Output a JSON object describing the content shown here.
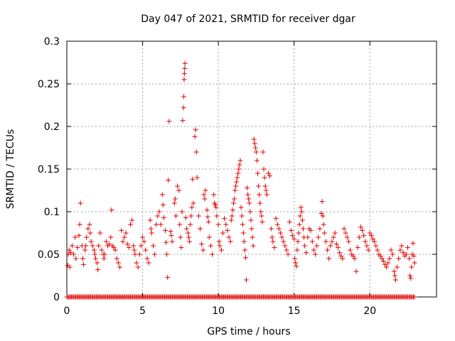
{
  "chart_data": {
    "type": "scatter",
    "title": "Day 047 of 2021, SRMTID for receiver dgar",
    "xlabel": "GPS time / hours",
    "ylabel": "SRMTID / TECUs",
    "xlim": [
      0,
      24.4
    ],
    "ylim": [
      0,
      0.3
    ],
    "xticks": [
      0,
      5,
      10,
      15,
      20
    ],
    "xtick_labels": [
      "0",
      "5",
      "10",
      "15",
      "20"
    ],
    "yticks": [
      0,
      0.05,
      0.1,
      0.15,
      0.2,
      0.25,
      0.3
    ],
    "ytick_labels": [
      "0",
      "0.05",
      "0.1",
      "0.15",
      "0.2",
      "0.25",
      "0.3"
    ],
    "grid": true,
    "marker": "+",
    "color": "#e00000",
    "series": [
      {
        "name": "SRMTID",
        "points": [
          [
            0.05,
            0.037
          ],
          [
            0.1,
            0.05
          ],
          [
            0.15,
            0.055
          ],
          [
            0.2,
            0.035
          ],
          [
            0.25,
            0.052
          ],
          [
            0.35,
            0.06
          ],
          [
            0.45,
            0.05
          ],
          [
            0.55,
            0.07
          ],
          [
            0.6,
            0.045
          ],
          [
            0.7,
            0.058
          ],
          [
            0.8,
            0.072
          ],
          [
            0.85,
            0.085
          ],
          [
            0.9,
            0.11
          ],
          [
            1.0,
            0.06
          ],
          [
            1.05,
            0.045
          ],
          [
            1.1,
            0.038
          ],
          [
            1.2,
            0.055
          ],
          [
            1.25,
            0.06
          ],
          [
            1.3,
            0.07
          ],
          [
            1.4,
            0.08
          ],
          [
            1.5,
            0.085
          ],
          [
            1.55,
            0.075
          ],
          [
            1.6,
            0.065
          ],
          [
            1.7,
            0.06
          ],
          [
            1.8,
            0.055
          ],
          [
            1.85,
            0.05
          ],
          [
            1.9,
            0.045
          ],
          [
            2.0,
            0.04
          ],
          [
            2.05,
            0.032
          ],
          [
            2.1,
            0.06
          ],
          [
            2.2,
            0.075
          ],
          [
            2.3,
            0.055
          ],
          [
            2.4,
            0.05
          ],
          [
            2.45,
            0.045
          ],
          [
            2.5,
            0.05
          ],
          [
            2.6,
            0.065
          ],
          [
            2.7,
            0.06
          ],
          [
            2.8,
            0.062
          ],
          [
            2.9,
            0.07
          ],
          [
            2.95,
            0.102
          ],
          [
            3.0,
            0.06
          ],
          [
            3.1,
            0.058
          ],
          [
            3.2,
            0.055
          ],
          [
            3.3,
            0.045
          ],
          [
            3.4,
            0.04
          ],
          [
            3.5,
            0.035
          ],
          [
            3.6,
            0.078
          ],
          [
            3.7,
            0.065
          ],
          [
            3.8,
            0.07
          ],
          [
            3.9,
            0.075
          ],
          [
            4.0,
            0.062
          ],
          [
            4.1,
            0.058
          ],
          [
            4.2,
            0.085
          ],
          [
            4.3,
            0.09
          ],
          [
            4.4,
            0.06
          ],
          [
            4.45,
            0.055
          ],
          [
            4.5,
            0.05
          ],
          [
            4.6,
            0.04
          ],
          [
            4.7,
            0.035
          ],
          [
            4.8,
            0.05
          ],
          [
            4.9,
            0.06
          ],
          [
            5.0,
            0.07
          ],
          [
            5.1,
            0.065
          ],
          [
            5.2,
            0.055
          ],
          [
            5.3,
            0.045
          ],
          [
            5.4,
            0.04
          ],
          [
            5.5,
            0.09
          ],
          [
            5.55,
            0.08
          ],
          [
            5.6,
            0.075
          ],
          [
            5.7,
            0.06
          ],
          [
            5.8,
            0.05
          ],
          [
            5.9,
            0.085
          ],
          [
            6.0,
            0.095
          ],
          [
            6.1,
            0.1
          ],
          [
            6.2,
            0.085
          ],
          [
            6.3,
            0.12
          ],
          [
            6.35,
            0.108
          ],
          [
            6.4,
            0.093
          ],
          [
            6.5,
            0.078
          ],
          [
            6.55,
            0.064
          ],
          [
            6.6,
            0.05
          ],
          [
            6.65,
            0.023
          ],
          [
            6.7,
            0.137
          ],
          [
            6.75,
            0.206
          ],
          [
            6.85,
            0.077
          ],
          [
            6.9,
            0.072
          ],
          [
            6.95,
            0.065
          ],
          [
            7.1,
            0.11
          ],
          [
            7.15,
            0.115
          ],
          [
            7.2,
            0.095
          ],
          [
            7.3,
            0.13
          ],
          [
            7.4,
            0.125
          ],
          [
            7.45,
            0.085
          ],
          [
            7.5,
            0.07
          ],
          [
            7.55,
            0.058
          ],
          [
            7.6,
            0.1
          ],
          [
            7.65,
            0.207
          ],
          [
            7.7,
            0.222
          ],
          [
            7.72,
            0.235
          ],
          [
            7.74,
            0.255
          ],
          [
            7.76,
            0.262
          ],
          [
            7.78,
            0.268
          ],
          [
            7.8,
            0.274
          ],
          [
            7.85,
            0.093
          ],
          [
            7.9,
            0.08
          ],
          [
            8.0,
            0.075
          ],
          [
            8.05,
            0.07
          ],
          [
            8.1,
            0.065
          ],
          [
            8.15,
            0.085
          ],
          [
            8.2,
            0.095
          ],
          [
            8.25,
            0.105
          ],
          [
            8.3,
            0.138
          ],
          [
            8.35,
            0.11
          ],
          [
            8.45,
            0.188
          ],
          [
            8.5,
            0.196
          ],
          [
            8.55,
            0.17
          ],
          [
            8.6,
            0.14
          ],
          [
            8.7,
            0.095
          ],
          [
            8.8,
            0.08
          ],
          [
            8.9,
            0.062
          ],
          [
            9.0,
            0.055
          ],
          [
            9.05,
            0.12
          ],
          [
            9.1,
            0.115
          ],
          [
            9.15,
            0.125
          ],
          [
            9.25,
            0.102
          ],
          [
            9.3,
            0.094
          ],
          [
            9.35,
            0.088
          ],
          [
            9.4,
            0.07
          ],
          [
            9.5,
            0.06
          ],
          [
            9.6,
            0.05
          ],
          [
            9.7,
            0.12
          ],
          [
            9.75,
            0.11
          ],
          [
            9.8,
            0.108
          ],
          [
            9.85,
            0.105
          ],
          [
            9.9,
            0.095
          ],
          [
            10.0,
            0.085
          ],
          [
            10.05,
            0.065
          ],
          [
            10.1,
            0.06
          ],
          [
            10.2,
            0.055
          ],
          [
            10.3,
            0.075
          ],
          [
            10.4,
            0.092
          ],
          [
            10.5,
            0.085
          ],
          [
            10.6,
            0.078
          ],
          [
            10.7,
            0.07
          ],
          [
            10.8,
            0.065
          ],
          [
            10.85,
            0.09
          ],
          [
            10.9,
            0.095
          ],
          [
            10.95,
            0.102
          ],
          [
            11.0,
            0.11
          ],
          [
            11.05,
            0.115
          ],
          [
            11.1,
            0.125
          ],
          [
            11.15,
            0.13
          ],
          [
            11.2,
            0.135
          ],
          [
            11.25,
            0.14
          ],
          [
            11.3,
            0.145
          ],
          [
            11.35,
            0.15
          ],
          [
            11.4,
            0.155
          ],
          [
            11.45,
            0.16
          ],
          [
            11.5,
            0.105
          ],
          [
            11.55,
            0.095
          ],
          [
            11.6,
            0.085
          ],
          [
            11.65,
            0.075
          ],
          [
            11.7,
            0.065
          ],
          [
            11.75,
            0.055
          ],
          [
            11.8,
            0.046
          ],
          [
            11.85,
            0.02
          ],
          [
            11.9,
            0.128
          ],
          [
            11.95,
            0.12
          ],
          [
            12.0,
            0.115
          ],
          [
            12.05,
            0.11
          ],
          [
            12.1,
            0.1
          ],
          [
            12.15,
            0.09
          ],
          [
            12.2,
            0.08
          ],
          [
            12.25,
            0.07
          ],
          [
            12.3,
            0.06
          ],
          [
            12.35,
            0.185
          ],
          [
            12.4,
            0.18
          ],
          [
            12.45,
            0.175
          ],
          [
            12.5,
            0.17
          ],
          [
            12.55,
            0.16
          ],
          [
            12.6,
            0.145
          ],
          [
            12.65,
            0.13
          ],
          [
            12.7,
            0.12
          ],
          [
            12.75,
            0.11
          ],
          [
            12.8,
            0.1
          ],
          [
            12.85,
            0.095
          ],
          [
            12.9,
            0.088
          ],
          [
            12.95,
            0.17
          ],
          [
            13.0,
            0.15
          ],
          [
            13.05,
            0.14
          ],
          [
            13.1,
            0.13
          ],
          [
            13.15,
            0.125
          ],
          [
            13.2,
            0.12
          ],
          [
            13.3,
            0.145
          ],
          [
            13.4,
            0.142
          ],
          [
            13.5,
            0.08
          ],
          [
            13.55,
            0.07
          ],
          [
            13.6,
            0.065
          ],
          [
            13.7,
            0.058
          ],
          [
            13.8,
            0.092
          ],
          [
            13.9,
            0.085
          ],
          [
            14.0,
            0.08
          ],
          [
            14.1,
            0.075
          ],
          [
            14.2,
            0.07
          ],
          [
            14.3,
            0.065
          ],
          [
            14.4,
            0.06
          ],
          [
            14.5,
            0.055
          ],
          [
            14.6,
            0.05
          ],
          [
            14.7,
            0.088
          ],
          [
            14.8,
            0.078
          ],
          [
            14.9,
            0.072
          ],
          [
            15.0,
            0.068
          ],
          [
            15.05,
            0.045
          ],
          [
            15.1,
            0.04
          ],
          [
            15.15,
            0.036
          ],
          [
            15.2,
            0.055
          ],
          [
            15.25,
            0.065
          ],
          [
            15.3,
            0.075
          ],
          [
            15.35,
            0.085
          ],
          [
            15.4,
            0.095
          ],
          [
            15.45,
            0.105
          ],
          [
            15.5,
            0.1
          ],
          [
            15.55,
            0.09
          ],
          [
            15.6,
            0.08
          ],
          [
            15.65,
            0.07
          ],
          [
            15.7,
            0.06
          ],
          [
            15.8,
            0.052
          ],
          [
            15.9,
            0.07
          ],
          [
            16.0,
            0.08
          ],
          [
            16.1,
            0.078
          ],
          [
            16.2,
            0.065
          ],
          [
            16.3,
            0.055
          ],
          [
            16.4,
            0.05
          ],
          [
            16.5,
            0.06
          ],
          [
            16.6,
            0.07
          ],
          [
            16.7,
            0.08
          ],
          [
            16.8,
            0.098
          ],
          [
            16.85,
            0.112
          ],
          [
            16.9,
            0.095
          ],
          [
            16.95,
            0.085
          ],
          [
            17.0,
            0.075
          ],
          [
            17.1,
            0.065
          ],
          [
            17.2,
            0.055
          ],
          [
            17.3,
            0.045
          ],
          [
            17.4,
            0.06
          ],
          [
            17.5,
            0.065
          ],
          [
            17.6,
            0.07
          ],
          [
            17.7,
            0.075
          ],
          [
            17.8,
            0.062
          ],
          [
            17.9,
            0.058
          ],
          [
            18.0,
            0.052
          ],
          [
            18.1,
            0.048
          ],
          [
            18.2,
            0.045
          ],
          [
            18.3,
            0.08
          ],
          [
            18.4,
            0.075
          ],
          [
            18.5,
            0.07
          ],
          [
            18.6,
            0.065
          ],
          [
            18.7,
            0.055
          ],
          [
            18.8,
            0.05
          ],
          [
            18.9,
            0.048
          ],
          [
            19.0,
            0.045
          ],
          [
            19.1,
            0.03
          ],
          [
            19.2,
            0.058
          ],
          [
            19.3,
            0.07
          ],
          [
            19.4,
            0.082
          ],
          [
            19.5,
            0.078
          ],
          [
            19.6,
            0.072
          ],
          [
            19.7,
            0.065
          ],
          [
            19.8,
            0.06
          ],
          [
            19.9,
            0.055
          ],
          [
            20.0,
            0.075
          ],
          [
            20.1,
            0.072
          ],
          [
            20.2,
            0.068
          ],
          [
            20.3,
            0.065
          ],
          [
            20.4,
            0.06
          ],
          [
            20.5,
            0.055
          ],
          [
            20.6,
            0.05
          ],
          [
            20.7,
            0.048
          ],
          [
            20.8,
            0.045
          ],
          [
            20.9,
            0.042
          ],
          [
            21.0,
            0.038
          ],
          [
            21.1,
            0.035
          ],
          [
            21.2,
            0.04
          ],
          [
            21.3,
            0.045
          ],
          [
            21.4,
            0.055
          ],
          [
            21.5,
            0.05
          ],
          [
            21.6,
            0.03
          ],
          [
            21.65,
            0.025
          ],
          [
            21.7,
            0.02
          ],
          [
            21.8,
            0.035
          ],
          [
            21.9,
            0.045
          ],
          [
            22.0,
            0.055
          ],
          [
            22.1,
            0.06
          ],
          [
            22.2,
            0.052
          ],
          [
            22.3,
            0.048
          ],
          [
            22.4,
            0.05
          ],
          [
            22.5,
            0.058
          ],
          [
            22.6,
            0.045
          ],
          [
            22.65,
            0.025
          ],
          [
            22.7,
            0.022
          ],
          [
            22.75,
            0.035
          ],
          [
            22.8,
            0.05
          ],
          [
            22.85,
            0.063
          ],
          [
            22.9,
            0.048
          ],
          [
            22.95,
            0.04
          ]
        ]
      }
    ]
  }
}
